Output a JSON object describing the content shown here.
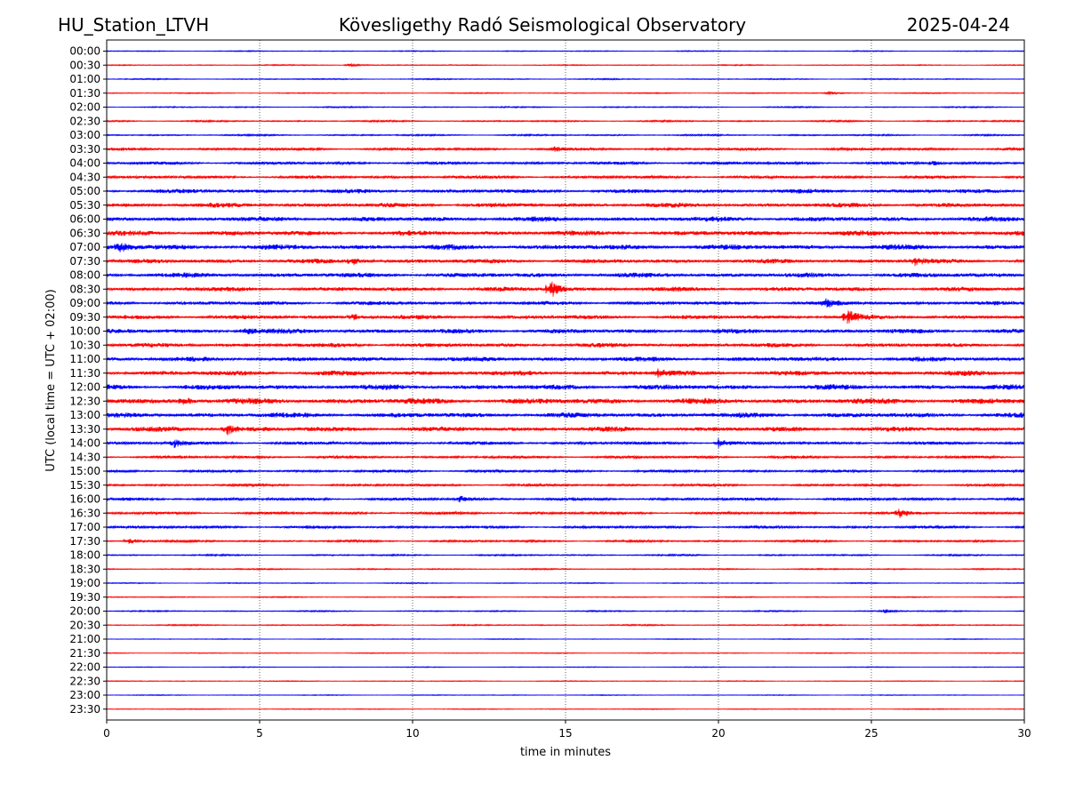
{
  "header": {
    "station": "HU_Station_LTVH",
    "observatory": "Kövesligethy Radó Seismological Observatory",
    "date": "2025-04-24"
  },
  "chart_data": {
    "type": "line",
    "title": "Kövesligethy Radó Seismological Observatory",
    "xlabel": "time in minutes",
    "ylabel": "UTC (local time = UTC + 02:00)",
    "xlim": [
      0,
      30
    ],
    "xticks": [
      0,
      5,
      10,
      15,
      20,
      25,
      30
    ],
    "grid": "vertical dotted at x ticks",
    "colors": {
      "even_rows": "#0000ff",
      "odd_rows": "#ff0000"
    },
    "rows": [
      "00:00",
      "00:30",
      "01:00",
      "01:30",
      "02:00",
      "02:30",
      "03:00",
      "03:30",
      "04:00",
      "04:30",
      "05:00",
      "05:30",
      "06:00",
      "06:30",
      "07:00",
      "07:30",
      "08:00",
      "08:30",
      "09:00",
      "09:30",
      "10:00",
      "10:30",
      "11:00",
      "11:30",
      "12:00",
      "12:30",
      "13:00",
      "13:30",
      "14:00",
      "14:30",
      "15:00",
      "15:30",
      "16:00",
      "16:30",
      "17:00",
      "17:30",
      "18:00",
      "18:30",
      "19:00",
      "19:30",
      "20:00",
      "20:30",
      "21:00",
      "21:30",
      "22:00",
      "22:30",
      "23:00",
      "23:30"
    ],
    "noise_level": [
      0.15,
      0.15,
      0.18,
      0.15,
      0.2,
      0.25,
      0.25,
      0.45,
      0.5,
      0.5,
      0.7,
      0.75,
      0.85,
      0.85,
      0.9,
      0.75,
      0.8,
      0.75,
      0.65,
      0.7,
      0.8,
      0.7,
      0.8,
      0.85,
      0.9,
      1.0,
      0.85,
      0.85,
      0.55,
      0.45,
      0.45,
      0.4,
      0.5,
      0.45,
      0.45,
      0.35,
      0.25,
      0.2,
      0.15,
      0.15,
      0.2,
      0.2,
      0.12,
      0.12,
      0.12,
      0.12,
      0.12,
      0.12
    ],
    "events": [
      {
        "row": "00:30",
        "minute": 7.9,
        "amplitude": 0.6
      },
      {
        "row": "01:30",
        "minute": 23.6,
        "amplitude": 0.6
      },
      {
        "row": "03:30",
        "minute": 14.6,
        "amplitude": 0.7
      },
      {
        "row": "04:00",
        "minute": 27.0,
        "amplitude": 0.8
      },
      {
        "row": "07:00",
        "minute": 0.4,
        "amplitude": 1.6
      },
      {
        "row": "07:30",
        "minute": 8.0,
        "amplitude": 1.5
      },
      {
        "row": "07:30",
        "minute": 26.4,
        "amplitude": 1.3
      },
      {
        "row": "08:30",
        "minute": 14.5,
        "amplitude": 3.5
      },
      {
        "row": "09:00",
        "minute": 23.5,
        "amplitude": 1.4
      },
      {
        "row": "09:30",
        "minute": 8.0,
        "amplitude": 1.3
      },
      {
        "row": "09:30",
        "minute": 24.2,
        "amplitude": 2.6
      },
      {
        "row": "10:00",
        "minute": 4.5,
        "amplitude": 1.4
      },
      {
        "row": "11:30",
        "minute": 18.0,
        "amplitude": 1.5
      },
      {
        "row": "12:30",
        "minute": 2.5,
        "amplitude": 1.5
      },
      {
        "row": "13:30",
        "minute": 3.9,
        "amplitude": 2.2
      },
      {
        "row": "14:00",
        "minute": 2.2,
        "amplitude": 1.4
      },
      {
        "row": "14:00",
        "minute": 20.0,
        "amplitude": 1.8
      },
      {
        "row": "16:00",
        "minute": 11.5,
        "amplitude": 1.3
      },
      {
        "row": "16:30",
        "minute": 25.9,
        "amplitude": 1.4
      },
      {
        "row": "17:30",
        "minute": 0.7,
        "amplitude": 1.2
      },
      {
        "row": "20:00",
        "minute": 25.4,
        "amplitude": 0.8
      }
    ]
  }
}
